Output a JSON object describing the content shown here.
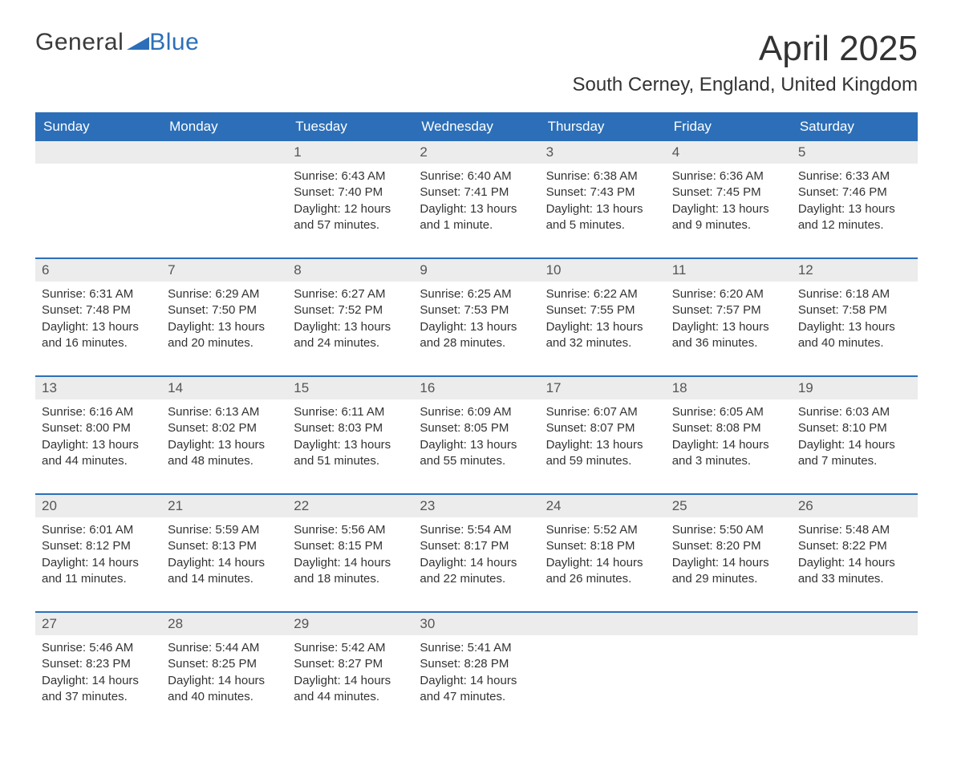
{
  "logo": {
    "text1": "General",
    "text2": "Blue",
    "icon_color": "#2c6fb8"
  },
  "title": "April 2025",
  "location": "South Cerney, England, United Kingdom",
  "colors": {
    "header_bg": "#2c6fb8",
    "header_text": "#ffffff",
    "daynum_bg": "#ececec",
    "border": "#2c6fb8",
    "body_text": "#333333"
  },
  "day_headers": [
    "Sunday",
    "Monday",
    "Tuesday",
    "Wednesday",
    "Thursday",
    "Friday",
    "Saturday"
  ],
  "weeks": [
    [
      null,
      null,
      {
        "d": "1",
        "sr": "Sunrise: 6:43 AM",
        "ss": "Sunset: 7:40 PM",
        "dl1": "Daylight: 12 hours",
        "dl2": "and 57 minutes."
      },
      {
        "d": "2",
        "sr": "Sunrise: 6:40 AM",
        "ss": "Sunset: 7:41 PM",
        "dl1": "Daylight: 13 hours",
        "dl2": "and 1 minute."
      },
      {
        "d": "3",
        "sr": "Sunrise: 6:38 AM",
        "ss": "Sunset: 7:43 PM",
        "dl1": "Daylight: 13 hours",
        "dl2": "and 5 minutes."
      },
      {
        "d": "4",
        "sr": "Sunrise: 6:36 AM",
        "ss": "Sunset: 7:45 PM",
        "dl1": "Daylight: 13 hours",
        "dl2": "and 9 minutes."
      },
      {
        "d": "5",
        "sr": "Sunrise: 6:33 AM",
        "ss": "Sunset: 7:46 PM",
        "dl1": "Daylight: 13 hours",
        "dl2": "and 12 minutes."
      }
    ],
    [
      {
        "d": "6",
        "sr": "Sunrise: 6:31 AM",
        "ss": "Sunset: 7:48 PM",
        "dl1": "Daylight: 13 hours",
        "dl2": "and 16 minutes."
      },
      {
        "d": "7",
        "sr": "Sunrise: 6:29 AM",
        "ss": "Sunset: 7:50 PM",
        "dl1": "Daylight: 13 hours",
        "dl2": "and 20 minutes."
      },
      {
        "d": "8",
        "sr": "Sunrise: 6:27 AM",
        "ss": "Sunset: 7:52 PM",
        "dl1": "Daylight: 13 hours",
        "dl2": "and 24 minutes."
      },
      {
        "d": "9",
        "sr": "Sunrise: 6:25 AM",
        "ss": "Sunset: 7:53 PM",
        "dl1": "Daylight: 13 hours",
        "dl2": "and 28 minutes."
      },
      {
        "d": "10",
        "sr": "Sunrise: 6:22 AM",
        "ss": "Sunset: 7:55 PM",
        "dl1": "Daylight: 13 hours",
        "dl2": "and 32 minutes."
      },
      {
        "d": "11",
        "sr": "Sunrise: 6:20 AM",
        "ss": "Sunset: 7:57 PM",
        "dl1": "Daylight: 13 hours",
        "dl2": "and 36 minutes."
      },
      {
        "d": "12",
        "sr": "Sunrise: 6:18 AM",
        "ss": "Sunset: 7:58 PM",
        "dl1": "Daylight: 13 hours",
        "dl2": "and 40 minutes."
      }
    ],
    [
      {
        "d": "13",
        "sr": "Sunrise: 6:16 AM",
        "ss": "Sunset: 8:00 PM",
        "dl1": "Daylight: 13 hours",
        "dl2": "and 44 minutes."
      },
      {
        "d": "14",
        "sr": "Sunrise: 6:13 AM",
        "ss": "Sunset: 8:02 PM",
        "dl1": "Daylight: 13 hours",
        "dl2": "and 48 minutes."
      },
      {
        "d": "15",
        "sr": "Sunrise: 6:11 AM",
        "ss": "Sunset: 8:03 PM",
        "dl1": "Daylight: 13 hours",
        "dl2": "and 51 minutes."
      },
      {
        "d": "16",
        "sr": "Sunrise: 6:09 AM",
        "ss": "Sunset: 8:05 PM",
        "dl1": "Daylight: 13 hours",
        "dl2": "and 55 minutes."
      },
      {
        "d": "17",
        "sr": "Sunrise: 6:07 AM",
        "ss": "Sunset: 8:07 PM",
        "dl1": "Daylight: 13 hours",
        "dl2": "and 59 minutes."
      },
      {
        "d": "18",
        "sr": "Sunrise: 6:05 AM",
        "ss": "Sunset: 8:08 PM",
        "dl1": "Daylight: 14 hours",
        "dl2": "and 3 minutes."
      },
      {
        "d": "19",
        "sr": "Sunrise: 6:03 AM",
        "ss": "Sunset: 8:10 PM",
        "dl1": "Daylight: 14 hours",
        "dl2": "and 7 minutes."
      }
    ],
    [
      {
        "d": "20",
        "sr": "Sunrise: 6:01 AM",
        "ss": "Sunset: 8:12 PM",
        "dl1": "Daylight: 14 hours",
        "dl2": "and 11 minutes."
      },
      {
        "d": "21",
        "sr": "Sunrise: 5:59 AM",
        "ss": "Sunset: 8:13 PM",
        "dl1": "Daylight: 14 hours",
        "dl2": "and 14 minutes."
      },
      {
        "d": "22",
        "sr": "Sunrise: 5:56 AM",
        "ss": "Sunset: 8:15 PM",
        "dl1": "Daylight: 14 hours",
        "dl2": "and 18 minutes."
      },
      {
        "d": "23",
        "sr": "Sunrise: 5:54 AM",
        "ss": "Sunset: 8:17 PM",
        "dl1": "Daylight: 14 hours",
        "dl2": "and 22 minutes."
      },
      {
        "d": "24",
        "sr": "Sunrise: 5:52 AM",
        "ss": "Sunset: 8:18 PM",
        "dl1": "Daylight: 14 hours",
        "dl2": "and 26 minutes."
      },
      {
        "d": "25",
        "sr": "Sunrise: 5:50 AM",
        "ss": "Sunset: 8:20 PM",
        "dl1": "Daylight: 14 hours",
        "dl2": "and 29 minutes."
      },
      {
        "d": "26",
        "sr": "Sunrise: 5:48 AM",
        "ss": "Sunset: 8:22 PM",
        "dl1": "Daylight: 14 hours",
        "dl2": "and 33 minutes."
      }
    ],
    [
      {
        "d": "27",
        "sr": "Sunrise: 5:46 AM",
        "ss": "Sunset: 8:23 PM",
        "dl1": "Daylight: 14 hours",
        "dl2": "and 37 minutes."
      },
      {
        "d": "28",
        "sr": "Sunrise: 5:44 AM",
        "ss": "Sunset: 8:25 PM",
        "dl1": "Daylight: 14 hours",
        "dl2": "and 40 minutes."
      },
      {
        "d": "29",
        "sr": "Sunrise: 5:42 AM",
        "ss": "Sunset: 8:27 PM",
        "dl1": "Daylight: 14 hours",
        "dl2": "and 44 minutes."
      },
      {
        "d": "30",
        "sr": "Sunrise: 5:41 AM",
        "ss": "Sunset: 8:28 PM",
        "dl1": "Daylight: 14 hours",
        "dl2": "and 47 minutes."
      },
      null,
      null,
      null
    ]
  ]
}
